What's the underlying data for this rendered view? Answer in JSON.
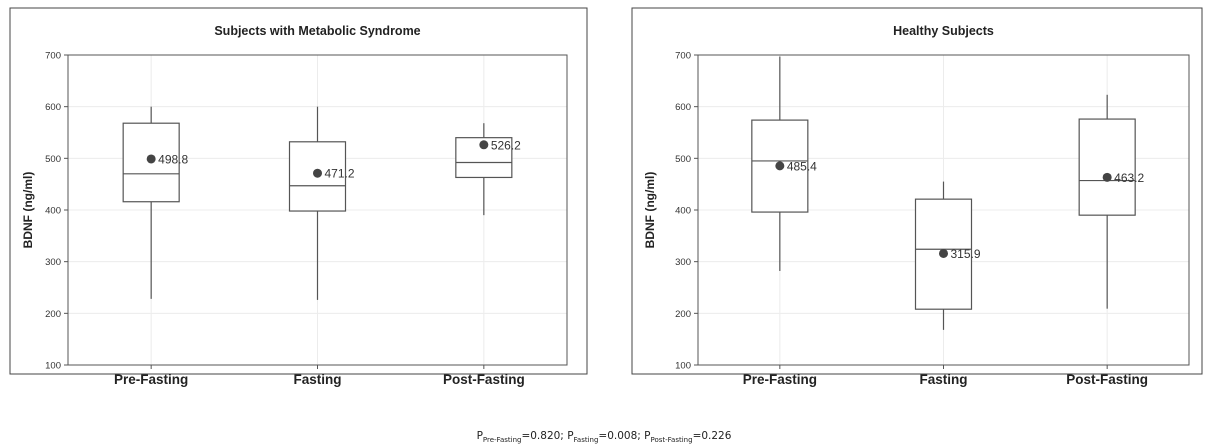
{
  "chart_data": [
    {
      "type": "box",
      "title": "Subjects with Metabolic Syndrome",
      "ylabel": "BDNF (ng/ml)",
      "xlabel": "",
      "ylim": [
        100,
        700
      ],
      "yticks": [
        100,
        200,
        300,
        400,
        500,
        600,
        700
      ],
      "categories": [
        "Pre-Fasting",
        "Fasting",
        "Post-Fasting"
      ],
      "grid": true,
      "boxes": [
        {
          "category": "Pre-Fasting",
          "min": 228,
          "q1": 416,
          "median": 470,
          "q3": 568,
          "max": 600,
          "mean": 498.8,
          "mean_label": "498.8"
        },
        {
          "category": "Fasting",
          "min": 226,
          "q1": 398,
          "median": 447,
          "q3": 532,
          "max": 600,
          "mean": 471.2,
          "mean_label": "471.2"
        },
        {
          "category": "Post-Fasting",
          "min": 390,
          "q1": 463,
          "median": 492,
          "q3": 540,
          "max": 568,
          "mean": 526.2,
          "mean_label": "526.2"
        }
      ]
    },
    {
      "type": "box",
      "title": "Healthy Subjects",
      "ylabel": "BDNF (ng/ml)",
      "xlabel": "",
      "ylim": [
        100,
        700
      ],
      "yticks": [
        100,
        200,
        300,
        400,
        500,
        600,
        700
      ],
      "categories": [
        "Pre-Fasting",
        "Fasting",
        "Post-Fasting"
      ],
      "grid": true,
      "boxes": [
        {
          "category": "Pre-Fasting",
          "min": 282,
          "q1": 396,
          "median": 495,
          "q3": 574,
          "max": 697,
          "mean": 485.4,
          "mean_label": "485.4"
        },
        {
          "category": "Fasting",
          "min": 168,
          "q1": 208,
          "median": 324,
          "q3": 421,
          "max": 455,
          "mean": 315.9,
          "mean_label": "315.9"
        },
        {
          "category": "Post-Fasting",
          "min": 209,
          "q1": 390,
          "median": 457,
          "q3": 576,
          "max": 623,
          "mean": 463.2,
          "mean_label": "463.2"
        }
      ]
    }
  ],
  "footnote": {
    "pre_sym": "P",
    "pre_sub": "Pre-Fasting",
    "pre_val": "=0.820; ",
    "fast_sym": "P",
    "fast_sub": "Fasting",
    "fast_val": "=0.008; ",
    "post_sym": "P",
    "post_sub": "Post-Fasting",
    "post_val": "=0.226"
  }
}
